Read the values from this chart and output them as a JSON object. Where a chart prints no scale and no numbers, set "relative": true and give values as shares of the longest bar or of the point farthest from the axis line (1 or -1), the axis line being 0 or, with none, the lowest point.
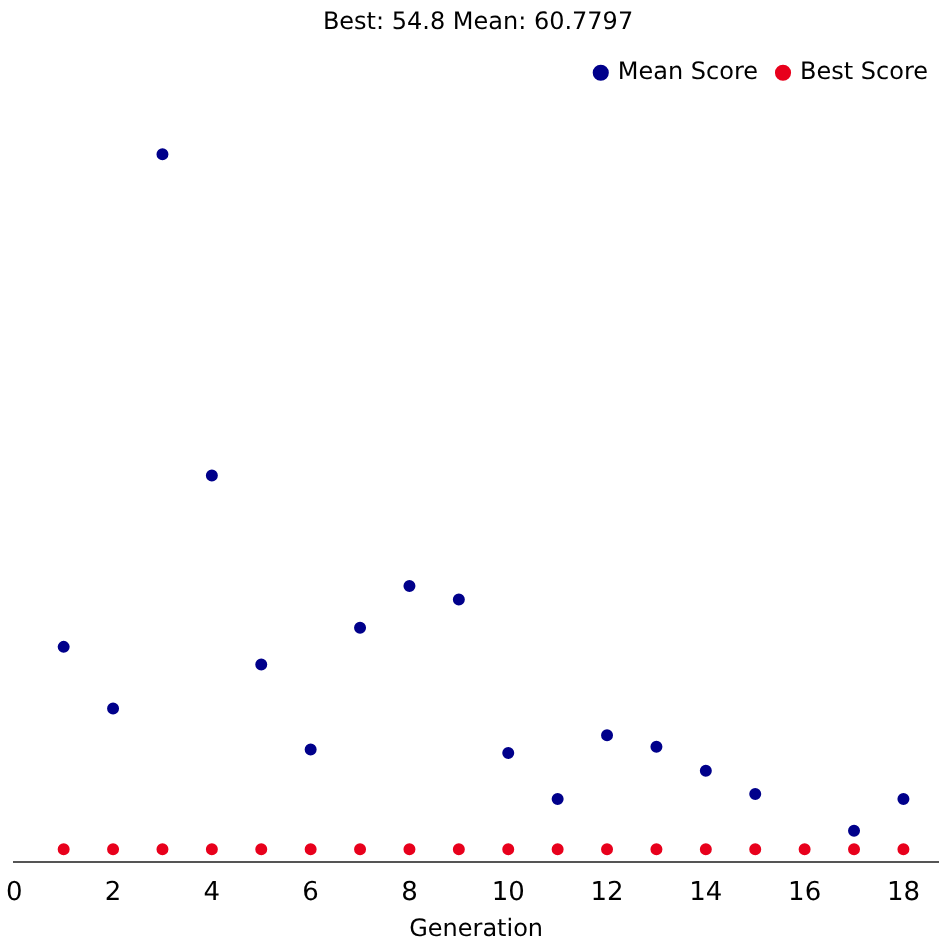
{
  "chart_data": {
    "type": "scatter",
    "title": "Best: 54.8 Mean: 60.7797",
    "xlabel": "Generation",
    "relative": true,
    "x": [
      1,
      2,
      3,
      4,
      5,
      6,
      7,
      8,
      9,
      10,
      11,
      12,
      13,
      14,
      15,
      16,
      17,
      18
    ],
    "xlim": [
      0,
      18.7
    ],
    "xticks": [
      0,
      2,
      4,
      6,
      8,
      10,
      12,
      14,
      16,
      18
    ],
    "series": [
      {
        "name": "Mean Score",
        "color": "#00008b",
        "values": [
          0.304,
          0.217,
          1,
          0.546,
          0.279,
          0.159,
          0.331,
          0.39,
          0.371,
          0.154,
          0.089,
          0.179,
          0.163,
          0.129,
          0.096,
          null,
          0.044,
          0.089
        ]
      },
      {
        "name": "Best Score",
        "color": "#e8001c",
        "values": [
          0.018,
          0.018,
          0.018,
          0.018,
          0.018,
          0.018,
          0.018,
          0.018,
          0.018,
          0.018,
          0.018,
          0.018,
          0.018,
          0.018,
          0.018,
          0.018,
          0.018,
          0.018
        ]
      }
    ],
    "legend": "top right",
    "marker": "circle",
    "grid": false
  }
}
